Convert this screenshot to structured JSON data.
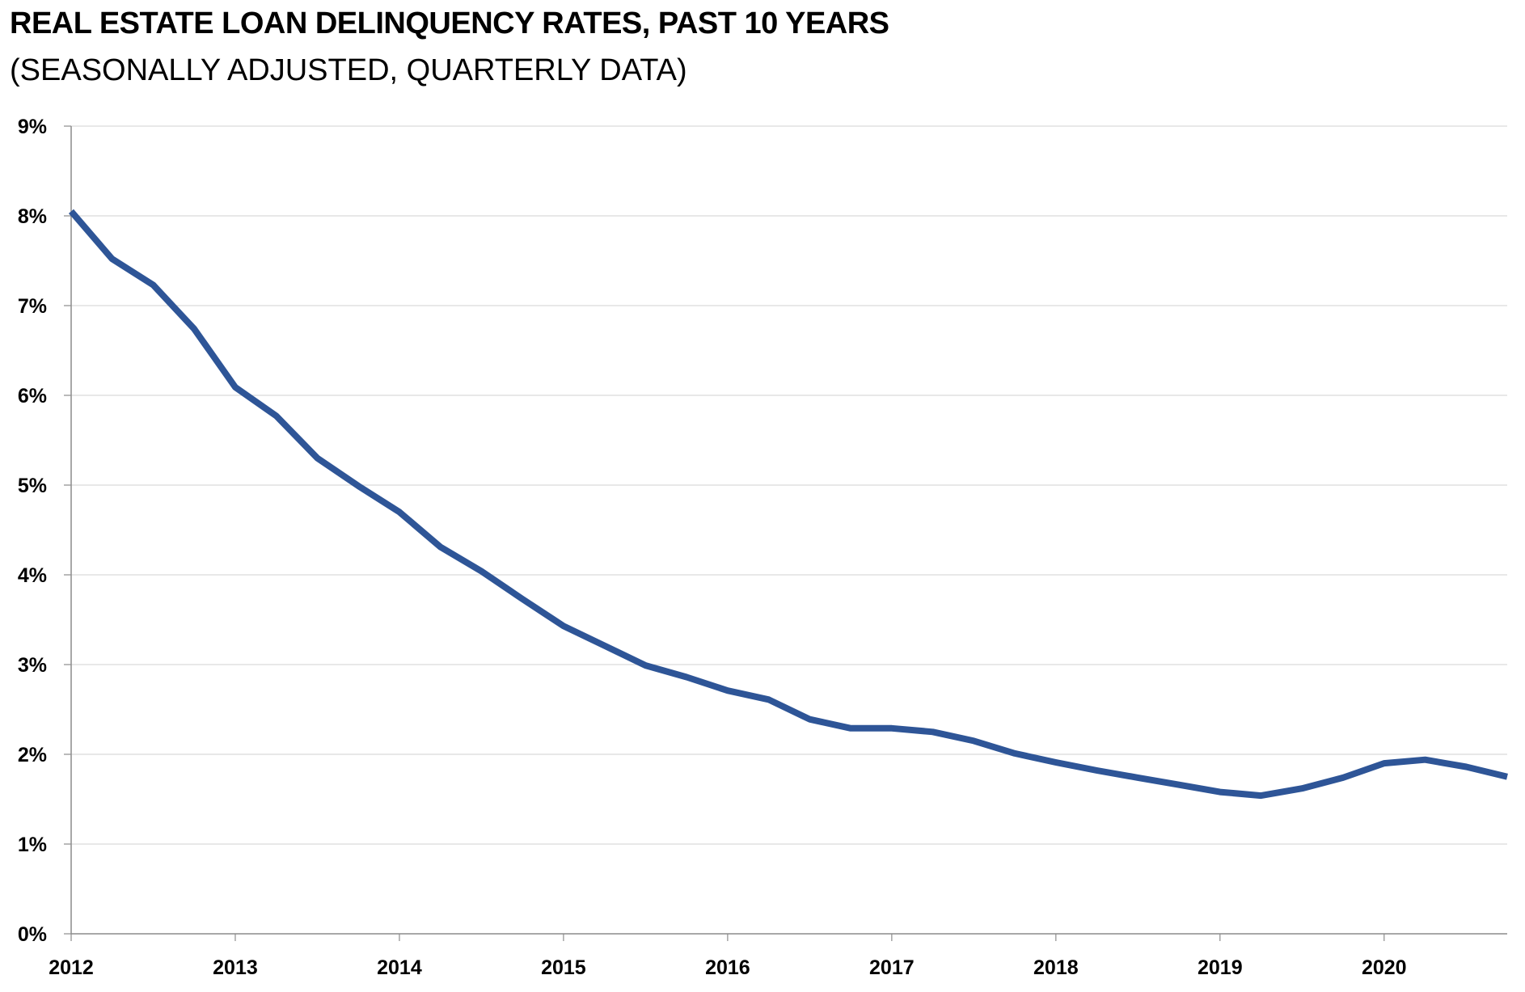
{
  "chart_data": {
    "type": "line",
    "title": "REAL ESTATE LOAN DELINQUENCY RATES, PAST 10 YEARS",
    "subtitle": "(SEASONALLY ADJUSTED, QUARTERLY DATA)",
    "xlabel": "",
    "ylabel": "",
    "y_unit": "%",
    "ylim": [
      0,
      9
    ],
    "y_ticks": [
      "0%",
      "1%",
      "2%",
      "3%",
      "4%",
      "5%",
      "6%",
      "7%",
      "8%",
      "9%"
    ],
    "x_ticks": [
      "2012",
      "2013",
      "2014",
      "2015",
      "2016",
      "2017",
      "2018",
      "2019",
      "2020"
    ],
    "xlim": [
      "2012-Q1",
      "2020-Q4"
    ],
    "grid": true,
    "legend": "none",
    "line_color": "#2E5597",
    "series": [
      {
        "x": [
          "2012-Q1",
          "2012-Q2",
          "2012-Q3",
          "2012-Q4",
          "2013-Q1",
          "2013-Q2",
          "2013-Q3",
          "2013-Q4",
          "2014-Q1",
          "2014-Q2",
          "2014-Q3",
          "2014-Q4",
          "2015-Q1",
          "2015-Q2",
          "2015-Q3",
          "2015-Q4",
          "2016-Q1",
          "2016-Q2",
          "2016-Q3",
          "2016-Q4",
          "2017-Q1",
          "2017-Q2",
          "2017-Q3",
          "2017-Q4",
          "2018-Q1",
          "2018-Q2",
          "2018-Q3",
          "2018-Q4",
          "2019-Q1",
          "2019-Q2",
          "2019-Q3",
          "2019-Q4",
          "2020-Q1",
          "2020-Q2",
          "2020-Q3",
          "2020-Q4"
        ],
        "values": [
          8.05,
          7.52,
          7.23,
          6.74,
          6.09,
          5.77,
          5.3,
          4.99,
          4.7,
          4.31,
          4.04,
          3.73,
          3.43,
          3.21,
          2.99,
          2.86,
          2.71,
          2.61,
          2.39,
          2.29,
          2.29,
          2.25,
          2.15,
          2.01,
          1.91,
          1.82,
          1.74,
          1.66,
          1.58,
          1.54,
          1.62,
          1.74,
          1.9,
          1.94,
          1.86,
          1.75
        ]
      }
    ]
  }
}
